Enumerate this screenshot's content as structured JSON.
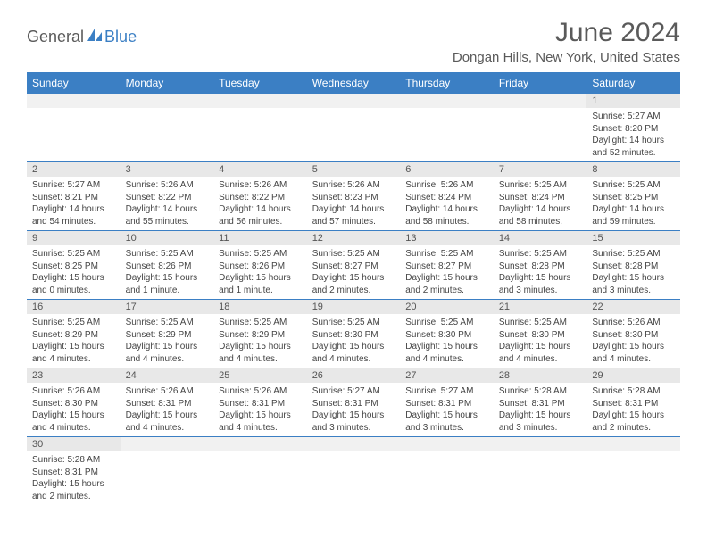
{
  "logo": {
    "text1": "General",
    "text2": "Blue"
  },
  "title": "June 2024",
  "location": "Dongan Hills, New York, United States",
  "colors": {
    "header_bg": "#3b7fc4",
    "header_text": "#ffffff",
    "daynum_bg": "#e8e8e8",
    "page_text": "#5a5a5a",
    "cell_border": "#3b7fc4"
  },
  "fonts": {
    "title_size": 30,
    "location_size": 15,
    "header_size": 12,
    "daynum_size": 11,
    "body_size": 10
  },
  "days": [
    "Sunday",
    "Monday",
    "Tuesday",
    "Wednesday",
    "Thursday",
    "Friday",
    "Saturday"
  ],
  "weeks": [
    [
      null,
      null,
      null,
      null,
      null,
      null,
      {
        "n": "1",
        "sr": "5:27 AM",
        "ss": "8:20 PM",
        "dl": "14 hours and 52 minutes."
      }
    ],
    [
      {
        "n": "2",
        "sr": "5:27 AM",
        "ss": "8:21 PM",
        "dl": "14 hours and 54 minutes."
      },
      {
        "n": "3",
        "sr": "5:26 AM",
        "ss": "8:22 PM",
        "dl": "14 hours and 55 minutes."
      },
      {
        "n": "4",
        "sr": "5:26 AM",
        "ss": "8:22 PM",
        "dl": "14 hours and 56 minutes."
      },
      {
        "n": "5",
        "sr": "5:26 AM",
        "ss": "8:23 PM",
        "dl": "14 hours and 57 minutes."
      },
      {
        "n": "6",
        "sr": "5:26 AM",
        "ss": "8:24 PM",
        "dl": "14 hours and 58 minutes."
      },
      {
        "n": "7",
        "sr": "5:25 AM",
        "ss": "8:24 PM",
        "dl": "14 hours and 58 minutes."
      },
      {
        "n": "8",
        "sr": "5:25 AM",
        "ss": "8:25 PM",
        "dl": "14 hours and 59 minutes."
      }
    ],
    [
      {
        "n": "9",
        "sr": "5:25 AM",
        "ss": "8:25 PM",
        "dl": "15 hours and 0 minutes."
      },
      {
        "n": "10",
        "sr": "5:25 AM",
        "ss": "8:26 PM",
        "dl": "15 hours and 1 minute."
      },
      {
        "n": "11",
        "sr": "5:25 AM",
        "ss": "8:26 PM",
        "dl": "15 hours and 1 minute."
      },
      {
        "n": "12",
        "sr": "5:25 AM",
        "ss": "8:27 PM",
        "dl": "15 hours and 2 minutes."
      },
      {
        "n": "13",
        "sr": "5:25 AM",
        "ss": "8:27 PM",
        "dl": "15 hours and 2 minutes."
      },
      {
        "n": "14",
        "sr": "5:25 AM",
        "ss": "8:28 PM",
        "dl": "15 hours and 3 minutes."
      },
      {
        "n": "15",
        "sr": "5:25 AM",
        "ss": "8:28 PM",
        "dl": "15 hours and 3 minutes."
      }
    ],
    [
      {
        "n": "16",
        "sr": "5:25 AM",
        "ss": "8:29 PM",
        "dl": "15 hours and 4 minutes."
      },
      {
        "n": "17",
        "sr": "5:25 AM",
        "ss": "8:29 PM",
        "dl": "15 hours and 4 minutes."
      },
      {
        "n": "18",
        "sr": "5:25 AM",
        "ss": "8:29 PM",
        "dl": "15 hours and 4 minutes."
      },
      {
        "n": "19",
        "sr": "5:25 AM",
        "ss": "8:30 PM",
        "dl": "15 hours and 4 minutes."
      },
      {
        "n": "20",
        "sr": "5:25 AM",
        "ss": "8:30 PM",
        "dl": "15 hours and 4 minutes."
      },
      {
        "n": "21",
        "sr": "5:25 AM",
        "ss": "8:30 PM",
        "dl": "15 hours and 4 minutes."
      },
      {
        "n": "22",
        "sr": "5:26 AM",
        "ss": "8:30 PM",
        "dl": "15 hours and 4 minutes."
      }
    ],
    [
      {
        "n": "23",
        "sr": "5:26 AM",
        "ss": "8:30 PM",
        "dl": "15 hours and 4 minutes."
      },
      {
        "n": "24",
        "sr": "5:26 AM",
        "ss": "8:31 PM",
        "dl": "15 hours and 4 minutes."
      },
      {
        "n": "25",
        "sr": "5:26 AM",
        "ss": "8:31 PM",
        "dl": "15 hours and 4 minutes."
      },
      {
        "n": "26",
        "sr": "5:27 AM",
        "ss": "8:31 PM",
        "dl": "15 hours and 3 minutes."
      },
      {
        "n": "27",
        "sr": "5:27 AM",
        "ss": "8:31 PM",
        "dl": "15 hours and 3 minutes."
      },
      {
        "n": "28",
        "sr": "5:28 AM",
        "ss": "8:31 PM",
        "dl": "15 hours and 3 minutes."
      },
      {
        "n": "29",
        "sr": "5:28 AM",
        "ss": "8:31 PM",
        "dl": "15 hours and 2 minutes."
      }
    ],
    [
      {
        "n": "30",
        "sr": "5:28 AM",
        "ss": "8:31 PM",
        "dl": "15 hours and 2 minutes."
      },
      null,
      null,
      null,
      null,
      null,
      null
    ]
  ],
  "labels": {
    "sunrise": "Sunrise:",
    "sunset": "Sunset:",
    "daylight": "Daylight:"
  }
}
